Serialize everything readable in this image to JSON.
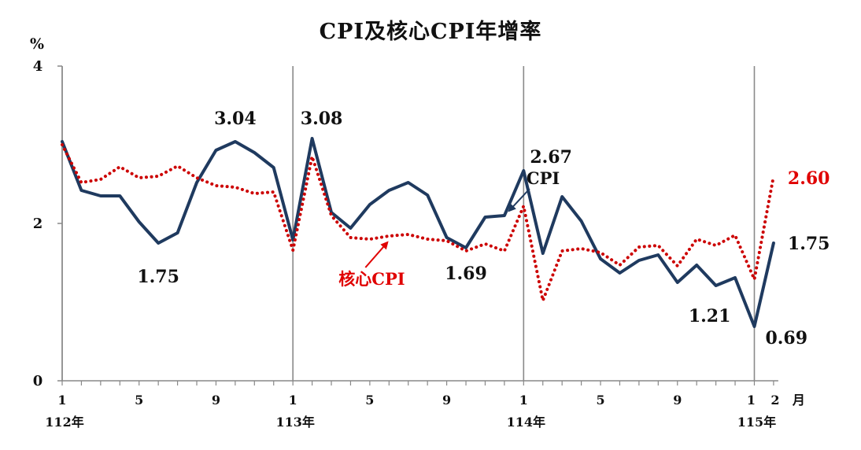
{
  "chart_data": {
    "type": "line",
    "title": "CPI及核心CPI年增率",
    "ylabel": "%",
    "xlabel": "月",
    "ylim": [
      0,
      4
    ],
    "yticks": [
      "0",
      "2",
      "4"
    ],
    "x": [
      "112-1",
      "112-2",
      "112-3",
      "112-4",
      "112-5",
      "112-6",
      "112-7",
      "112-8",
      "112-9",
      "112-10",
      "112-11",
      "112-12",
      "113-1",
      "113-2",
      "113-3",
      "113-4",
      "113-5",
      "113-6",
      "113-7",
      "113-8",
      "113-9",
      "113-10",
      "113-11",
      "113-12",
      "114-1",
      "114-2",
      "114-3",
      "114-4",
      "114-5",
      "114-6",
      "114-7",
      "114-8",
      "114-9",
      "114-10",
      "114-11",
      "114-12",
      "115-1",
      "115-2"
    ],
    "xtick_labels": [
      {
        "index": 0,
        "text": "1"
      },
      {
        "index": 4,
        "text": "5"
      },
      {
        "index": 8,
        "text": "9"
      },
      {
        "index": 12,
        "text": "1"
      },
      {
        "index": 16,
        "text": "5"
      },
      {
        "index": 20,
        "text": "9"
      },
      {
        "index": 24,
        "text": "1"
      },
      {
        "index": 28,
        "text": "5"
      },
      {
        "index": 32,
        "text": "9"
      },
      {
        "index": 36,
        "text": "1"
      },
      {
        "index": 37,
        "text": "2"
      }
    ],
    "year_labels": [
      {
        "index": 0,
        "text": "112年"
      },
      {
        "index": 12,
        "text": "113年"
      },
      {
        "index": 24,
        "text": "114年"
      },
      {
        "index": 36,
        "text": "115年"
      }
    ],
    "year_dividers": [
      0,
      12,
      24,
      36
    ],
    "series": [
      {
        "name": "CPI",
        "color": "#1f3a5f",
        "style": "solid",
        "values": [
          3.04,
          2.42,
          2.35,
          2.35,
          2.02,
          1.75,
          1.88,
          2.52,
          2.93,
          3.04,
          2.9,
          2.71,
          1.79,
          3.08,
          2.14,
          1.94,
          2.24,
          2.42,
          2.52,
          2.36,
          1.82,
          1.69,
          2.08,
          2.1,
          2.67,
          1.62,
          2.34,
          2.03,
          1.55,
          1.37,
          1.53,
          1.6,
          1.25,
          1.47,
          1.21,
          1.31,
          0.69,
          1.75
        ]
      },
      {
        "name": "核心CPI",
        "color": "#cc0000",
        "style": "dotted",
        "values": [
          3.0,
          2.52,
          2.56,
          2.72,
          2.58,
          2.6,
          2.73,
          2.58,
          2.48,
          2.46,
          2.38,
          2.4,
          1.66,
          2.85,
          2.1,
          1.82,
          1.8,
          1.84,
          1.86,
          1.8,
          1.78,
          1.65,
          1.74,
          1.65,
          2.22,
          1.02,
          1.65,
          1.68,
          1.63,
          1.47,
          1.7,
          1.72,
          1.46,
          1.8,
          1.72,
          1.85,
          1.29,
          2.6
        ]
      }
    ],
    "annotations": [
      {
        "text": "3.04",
        "series": "CPI",
        "index": 9
      },
      {
        "text": "1.75",
        "series": "CPI",
        "index": 5
      },
      {
        "text": "3.08",
        "series": "CPI",
        "index": 13
      },
      {
        "text": "1.69",
        "series": "CPI",
        "index": 21
      },
      {
        "text": "2.67",
        "series": "CPI",
        "index": 24
      },
      {
        "text": "1.21",
        "series": "CPI",
        "index": 34
      },
      {
        "text": "0.69",
        "series": "CPI",
        "index": 36
      },
      {
        "text": "1.75",
        "series": "CPI",
        "index": 37
      },
      {
        "text": "2.60",
        "series": "核心CPI",
        "index": 37
      }
    ],
    "series_labels": [
      {
        "text": "CPI",
        "series": "CPI"
      },
      {
        "text": "核心CPI",
        "series": "核心CPI"
      }
    ],
    "grid": false
  }
}
